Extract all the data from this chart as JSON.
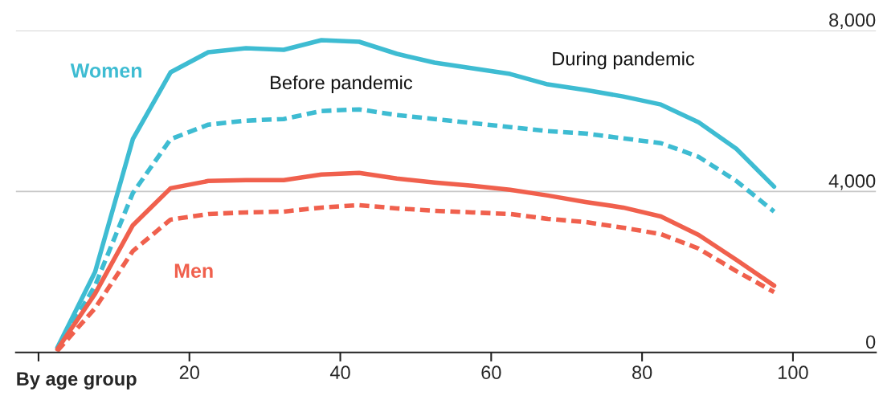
{
  "chart_data": {
    "type": "line",
    "xlabel": "By age group",
    "x": [
      2.5,
      7.5,
      12.5,
      17.5,
      22.5,
      27.5,
      32.5,
      37.5,
      42.5,
      47.5,
      52.5,
      57.5,
      62.5,
      67.5,
      72.5,
      77.5,
      82.5,
      87.5,
      92.5,
      97.5
    ],
    "series": [
      {
        "name": "Women",
        "color": "#3ebcd2",
        "line_style": "solid",
        "values": [
          120,
          2000,
          5300,
          6960,
          7460,
          7560,
          7520,
          7760,
          7720,
          7420,
          7200,
          7060,
          6920,
          6660,
          6520,
          6360,
          6160,
          5720,
          5060,
          4120
        ]
      },
      {
        "color": "#3ebcd2",
        "line_style": "dashed",
        "values": [
          80,
          1660,
          3960,
          5300,
          5660,
          5760,
          5800,
          6000,
          6040,
          5900,
          5800,
          5700,
          5600,
          5500,
          5440,
          5320,
          5200,
          4860,
          4260,
          3500
        ]
      },
      {
        "name": "Men",
        "color": "#f0604d",
        "line_style": "solid",
        "values": [
          80,
          1460,
          3160,
          4080,
          4260,
          4280,
          4280,
          4420,
          4460,
          4320,
          4220,
          4140,
          4040,
          3900,
          3740,
          3600,
          3380,
          2920,
          2300,
          1660
        ]
      },
      {
        "color": "#f0604d",
        "line_style": "dashed",
        "values": [
          40,
          1100,
          2520,
          3300,
          3440,
          3480,
          3500,
          3600,
          3660,
          3580,
          3520,
          3480,
          3440,
          3320,
          3240,
          3100,
          2940,
          2580,
          2020,
          1500
        ]
      }
    ],
    "annotations": [
      "During pandemic",
      "Before pandemic"
    ],
    "xlim": [
      -3,
      111
    ],
    "ylim": [
      0,
      8000
    ],
    "xticks": [
      {
        "value": 0,
        "label": null
      },
      20,
      40,
      60,
      80,
      100
    ],
    "yticks": [
      0,
      {
        "value": 4000,
        "label": "4,000"
      },
      {
        "value": 8000,
        "label": "8,000"
      }
    ],
    "grid": "y",
    "legend": false
  }
}
